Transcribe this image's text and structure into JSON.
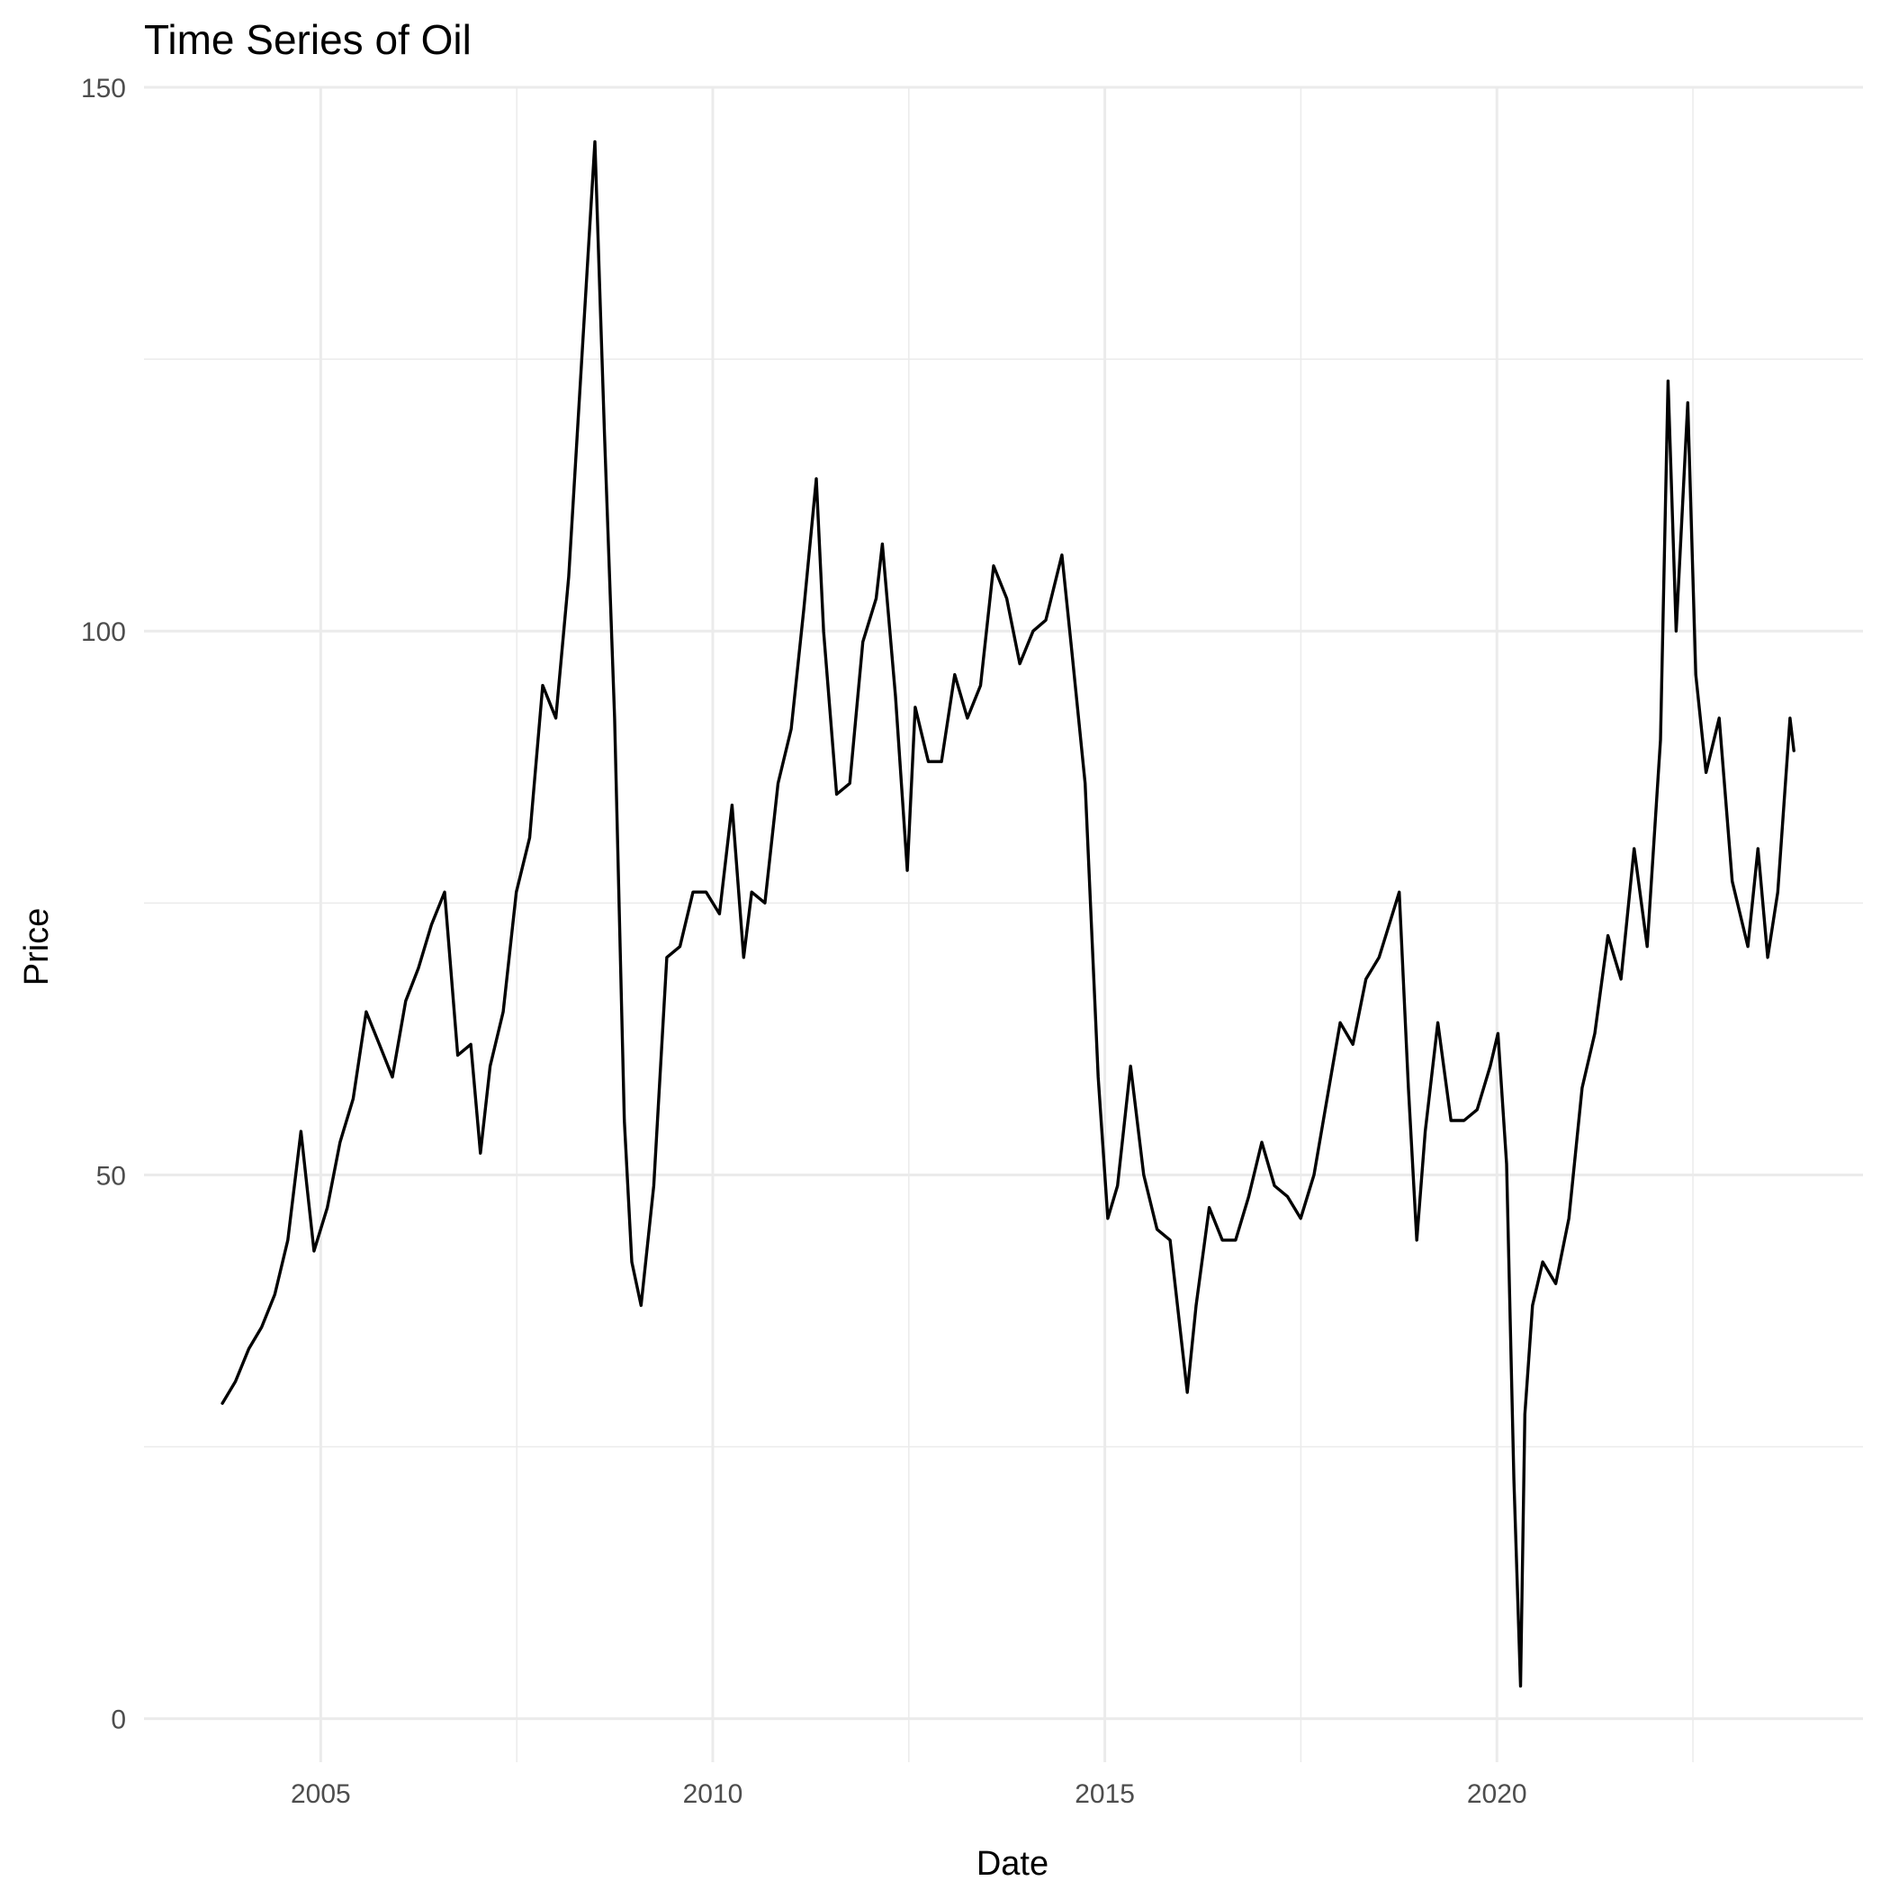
{
  "chart_data": {
    "type": "line",
    "title": "Time Series of Oil",
    "xlabel": "Date",
    "ylabel": "Price",
    "xlim": [
      "2002-10-01",
      "2024-09-01"
    ],
    "ylim": [
      -4,
      150
    ],
    "x_ticks": [
      "2005",
      "2010",
      "2015",
      "2020"
    ],
    "y_ticks": [
      "0",
      "50",
      "100",
      "150"
    ],
    "grid": true,
    "legend": "none",
    "line_color": "#000000",
    "series": [
      {
        "x": [
          "2003-10-01",
          "2003-12-01",
          "2004-02-01",
          "2004-04-01",
          "2004-06-01",
          "2004-08-01",
          "2004-10-01",
          "2004-12-01",
          "2005-02-01",
          "2005-04-01",
          "2005-06-01",
          "2005-08-01",
          "2005-10-01",
          "2005-12-01",
          "2006-02-01",
          "2006-04-01",
          "2006-06-01",
          "2006-08-01",
          "2006-10-01",
          "2006-12-01",
          "2007-01-15",
          "2007-03-01",
          "2007-05-01",
          "2007-07-01",
          "2007-09-01",
          "2007-11-01",
          "2008-01-01",
          "2008-03-01",
          "2008-05-01",
          "2008-07-01",
          "2008-08-15",
          "2008-10-01",
          "2008-11-15",
          "2008-12-20",
          "2009-02-01",
          "2009-04-01",
          "2009-06-01",
          "2009-08-01",
          "2009-10-01",
          "2009-12-01",
          "2010-02-01",
          "2010-04-01",
          "2010-05-25",
          "2010-07-01",
          "2010-09-01",
          "2010-11-01",
          "2011-01-01",
          "2011-03-01",
          "2011-04-28",
          "2011-06-01",
          "2011-08-01",
          "2011-10-01",
          "2011-12-01",
          "2012-02-01",
          "2012-03-01",
          "2012-05-01",
          "2012-06-25",
          "2012-08-01",
          "2012-10-01",
          "2012-12-01",
          "2013-02-01",
          "2013-04-01",
          "2013-06-01",
          "2013-08-01",
          "2013-10-01",
          "2013-12-01",
          "2014-02-01",
          "2014-04-01",
          "2014-06-15",
          "2014-08-01",
          "2014-10-01",
          "2014-12-01",
          "2015-01-15",
          "2015-03-01",
          "2015-05-01",
          "2015-07-01",
          "2015-09-01",
          "2015-11-01",
          "2016-01-20",
          "2016-03-01",
          "2016-05-01",
          "2016-07-01",
          "2016-09-01",
          "2016-11-01",
          "2017-01-01",
          "2017-03-01",
          "2017-05-01",
          "2017-07-01",
          "2017-09-01",
          "2017-11-01",
          "2018-01-01",
          "2018-03-01",
          "2018-05-01",
          "2018-07-01",
          "2018-10-03",
          "2018-11-15",
          "2018-12-24",
          "2019-02-01",
          "2019-04-01",
          "2019-06-01",
          "2019-08-01",
          "2019-10-01",
          "2019-12-01",
          "2020-01-06",
          "2020-02-15",
          "2020-03-20",
          "2020-04-20",
          "2020-05-10",
          "2020-06-15",
          "2020-08-01",
          "2020-10-01",
          "2020-12-01",
          "2021-02-01",
          "2021-04-01",
          "2021-06-01",
          "2021-08-01",
          "2021-10-01",
          "2021-12-01",
          "2022-02-01",
          "2022-03-08",
          "2022-04-15",
          "2022-06-08",
          "2022-07-15",
          "2022-09-01",
          "2022-11-01",
          "2023-01-01",
          "2023-03-15",
          "2023-05-01",
          "2023-06-15",
          "2023-08-01",
          "2023-09-27",
          "2023-10-15"
        ],
        "values": [
          29,
          31,
          34,
          36,
          39,
          44,
          54,
          43,
          47,
          53,
          57,
          65,
          62,
          59,
          66,
          69,
          73,
          76,
          61,
          62,
          52,
          60,
          65,
          76,
          81,
          95,
          92,
          105,
          125,
          145,
          118,
          92,
          55,
          42,
          38,
          49,
          70,
          71,
          76,
          76,
          74,
          84,
          70,
          76,
          75,
          86,
          91,
          102,
          114,
          100,
          85,
          86,
          99,
          103,
          108,
          94,
          78,
          93,
          88,
          88,
          96,
          92,
          95,
          106,
          103,
          97,
          100,
          101,
          107,
          98,
          86,
          59,
          46,
          49,
          60,
          50,
          45,
          44,
          30,
          38,
          47,
          44,
          44,
          48,
          53,
          49,
          48,
          46,
          50,
          57,
          64,
          62,
          68,
          70,
          76,
          58,
          44,
          54,
          64,
          55,
          55,
          56,
          60,
          63,
          51,
          22,
          3,
          28,
          38,
          42,
          40,
          46,
          58,
          63,
          72,
          68,
          80,
          71,
          90,
          123,
          100,
          121,
          96,
          87,
          92,
          77,
          71,
          80,
          70,
          76,
          92,
          89
        ]
      }
    ]
  }
}
